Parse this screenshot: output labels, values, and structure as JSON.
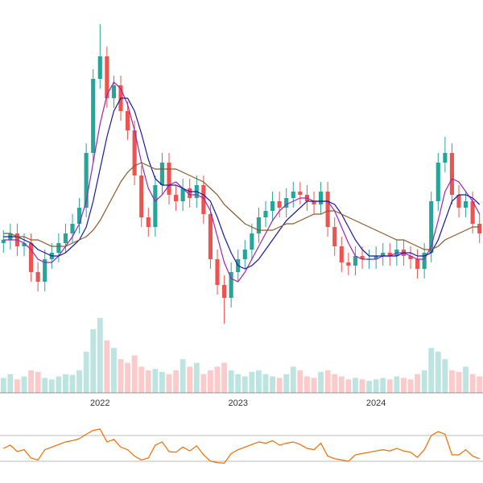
{
  "chart_data": [
    {
      "type": "candlestick",
      "up_color": "#26a69a",
      "down_color": "#ef5350",
      "ylim": [
        0,
        100
      ],
      "open": [
        27,
        28,
        30,
        26,
        27,
        18,
        15,
        22,
        24,
        27,
        30,
        33,
        38,
        55,
        78,
        85,
        72,
        76,
        68,
        62,
        48,
        35,
        32,
        45,
        52,
        42,
        40,
        44,
        41,
        45,
        36,
        22,
        14,
        10,
        18,
        22,
        25,
        30,
        35,
        37,
        40,
        38,
        41,
        43,
        42,
        40,
        39,
        43,
        32,
        26,
        21,
        20,
        23,
        22,
        22,
        23,
        24,
        23,
        25,
        23,
        22,
        19,
        24,
        40,
        52,
        55,
        42,
        38,
        40,
        33
      ],
      "high": [
        31,
        33,
        33,
        30,
        30,
        21,
        25,
        27,
        30,
        33,
        36,
        41,
        58,
        81,
        95,
        88,
        79,
        79,
        71,
        65,
        51,
        38,
        48,
        55,
        55,
        45,
        47,
        47,
        48,
        48,
        39,
        25,
        17,
        21,
        25,
        28,
        33,
        38,
        40,
        43,
        43,
        44,
        46,
        46,
        45,
        43,
        46,
        46,
        35,
        29,
        24,
        26,
        26,
        25,
        26,
        27,
        27,
        28,
        28,
        26,
        25,
        27,
        43,
        55,
        60,
        58,
        45,
        43,
        43,
        36
      ],
      "low": [
        24,
        25,
        23,
        23,
        15,
        12,
        12,
        19,
        21,
        24,
        27,
        30,
        35,
        52,
        75,
        69,
        69,
        65,
        59,
        45,
        32,
        29,
        29,
        42,
        39,
        37,
        37,
        38,
        38,
        33,
        19,
        11,
        2,
        7,
        15,
        19,
        22,
        27,
        32,
        34,
        35,
        35,
        38,
        39,
        37,
        36,
        36,
        29,
        23,
        18,
        17,
        17,
        19,
        19,
        19,
        20,
        20,
        20,
        20,
        19,
        16,
        16,
        21,
        37,
        49,
        39,
        35,
        35,
        30,
        27
      ],
      "close": [
        28,
        30,
        26,
        27,
        18,
        15,
        22,
        24,
        27,
        30,
        33,
        38,
        55,
        78,
        85,
        72,
        76,
        68,
        62,
        48,
        35,
        32,
        45,
        52,
        42,
        40,
        44,
        41,
        45,
        36,
        22,
        14,
        10,
        18,
        22,
        25,
        30,
        35,
        37,
        40,
        38,
        41,
        43,
        42,
        40,
        39,
        43,
        32,
        26,
        21,
        20,
        23,
        22,
        22,
        23,
        24,
        23,
        25,
        23,
        22,
        19,
        24,
        40,
        52,
        55,
        42,
        38,
        40,
        33,
        30
      ],
      "series": [
        {
          "color": "#9c27b0",
          "values": [
            28,
            28,
            28,
            27,
            25,
            22,
            21,
            21,
            23,
            26,
            29,
            33,
            40,
            52,
            64,
            73,
            77,
            75,
            70,
            62,
            52,
            44,
            40,
            42,
            45,
            46,
            44,
            42,
            42,
            41,
            37,
            29,
            21,
            16,
            15,
            18,
            22,
            26,
            30,
            34,
            37,
            39,
            40,
            41,
            41,
            40,
            40,
            40,
            37,
            32,
            27,
            23,
            22,
            22,
            22,
            23,
            23,
            24,
            24,
            23,
            22,
            22,
            26,
            34,
            43,
            47,
            46,
            43,
            40,
            36
          ]
        },
        {
          "color": "#1a1aa0",
          "values": [
            29,
            29,
            29,
            28,
            27,
            25,
            24,
            23,
            23,
            24,
            26,
            28,
            32,
            40,
            50,
            60,
            68,
            72,
            72,
            68,
            61,
            53,
            47,
            45,
            45,
            45,
            44,
            43,
            43,
            42,
            40,
            35,
            29,
            24,
            20,
            19,
            20,
            22,
            25,
            28,
            31,
            34,
            36,
            38,
            40,
            40,
            40,
            40,
            39,
            36,
            32,
            28,
            25,
            23,
            23,
            23,
            23,
            23,
            24,
            24,
            23,
            23,
            24,
            28,
            34,
            40,
            42,
            42,
            41,
            39
          ]
        },
        {
          "color": "#8d5a2b",
          "values": [
            30,
            30,
            29,
            29,
            28,
            28,
            27,
            26,
            26,
            26,
            27,
            28,
            29,
            31,
            34,
            38,
            42,
            46,
            49,
            51,
            52,
            51,
            50,
            50,
            50,
            50,
            49,
            48,
            47,
            46,
            44,
            42,
            39,
            37,
            35,
            33,
            32,
            31,
            31,
            31,
            32,
            33,
            33,
            34,
            35,
            36,
            36,
            37,
            37,
            36,
            35,
            34,
            33,
            32,
            31,
            30,
            29,
            28,
            28,
            27,
            26,
            25,
            25,
            26,
            28,
            29,
            30,
            31,
            32,
            32
          ]
        }
      ]
    },
    {
      "type": "bar",
      "ylim": [
        0,
        100
      ],
      "categories": [
        null,
        null,
        null,
        null,
        null,
        null,
        null,
        null,
        null,
        null,
        null,
        null,
        null,
        null,
        "2022",
        null,
        null,
        null,
        null,
        null,
        null,
        null,
        null,
        null,
        null,
        null,
        null,
        null,
        null,
        null,
        null,
        null,
        null,
        null,
        "2023",
        null,
        null,
        null,
        null,
        null,
        null,
        null,
        null,
        null,
        null,
        null,
        null,
        null,
        null,
        null,
        null,
        null,
        null,
        null,
        "2024",
        null,
        null,
        null,
        null,
        null,
        null,
        null,
        null,
        null,
        null,
        null,
        null,
        null,
        null,
        null
      ],
      "values": [
        20,
        25,
        18,
        22,
        30,
        28,
        20,
        18,
        22,
        25,
        24,
        30,
        55,
        85,
        100,
        70,
        60,
        45,
        40,
        50,
        35,
        30,
        32,
        28,
        25,
        30,
        45,
        35,
        40,
        25,
        30,
        35,
        40,
        30,
        25,
        22,
        28,
        30,
        25,
        22,
        20,
        25,
        35,
        30,
        22,
        20,
        28,
        30,
        25,
        22,
        18,
        20,
        18,
        16,
        18,
        20,
        18,
        22,
        20,
        18,
        25,
        30,
        60,
        55,
        45,
        30,
        28,
        35,
        25,
        22
      ]
    },
    {
      "type": "line",
      "color": "#ef6c00",
      "ylim": [
        0,
        100
      ],
      "yticks": [
        30,
        70
      ],
      "grid": true,
      "values": [
        50,
        55,
        45,
        48,
        35,
        32,
        48,
        52,
        56,
        60,
        62,
        65,
        72,
        78,
        80,
        60,
        64,
        52,
        48,
        38,
        32,
        35,
        55,
        60,
        45,
        44,
        52,
        46,
        54,
        40,
        30,
        28,
        27,
        42,
        48,
        52,
        56,
        60,
        58,
        62,
        55,
        58,
        60,
        56,
        50,
        48,
        58,
        38,
        34,
        32,
        30,
        40,
        42,
        44,
        46,
        48,
        46,
        50,
        46,
        44,
        36,
        48,
        70,
        76,
        72,
        40,
        40,
        48,
        38,
        34
      ]
    }
  ]
}
